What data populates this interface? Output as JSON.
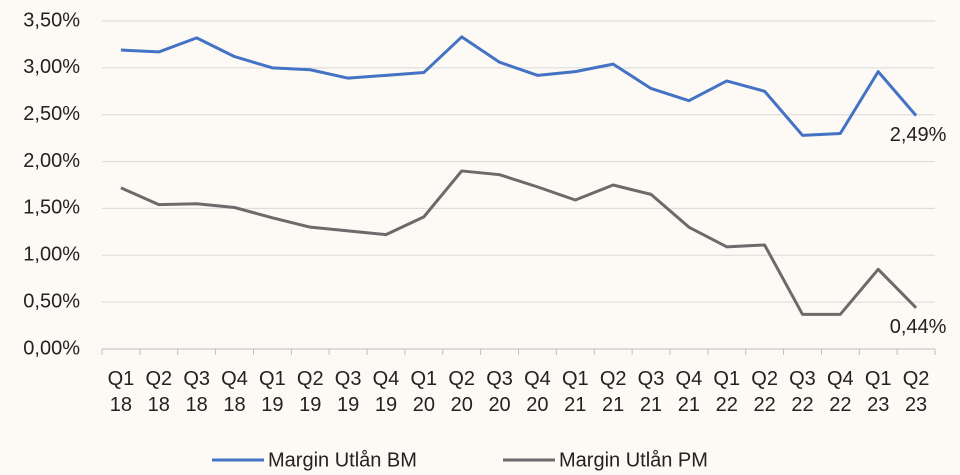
{
  "chart_data": {
    "type": "line",
    "categories": [
      "Q1\n18",
      "Q2\n18",
      "Q3\n18",
      "Q4\n18",
      "Q1\n19",
      "Q2\n19",
      "Q3\n19",
      "Q4\n19",
      "Q1\n20",
      "Q2\n20",
      "Q3\n20",
      "Q4\n20",
      "Q1\n21",
      "Q2\n21",
      "Q3\n21",
      "Q4\n21",
      "Q1\n22",
      "Q2\n22",
      "Q3\n22",
      "Q4\n22",
      "Q1\n23",
      "Q2\n23"
    ],
    "series": [
      {
        "name": "Margin Utlån BM",
        "color": "#4472c4",
        "values": [
          3.19,
          3.17,
          3.32,
          3.12,
          3.0,
          2.98,
          2.89,
          2.92,
          2.95,
          3.33,
          3.06,
          2.92,
          2.96,
          3.04,
          2.78,
          2.65,
          2.86,
          2.75,
          2.28,
          2.3,
          2.96,
          2.49
        ],
        "value_labels": [
          null,
          null,
          null,
          null,
          null,
          null,
          null,
          null,
          null,
          null,
          null,
          null,
          null,
          null,
          null,
          null,
          null,
          null,
          null,
          null,
          null,
          "2,49%"
        ]
      },
      {
        "name": "Margin Utlån PM",
        "color": "#6b6b6b",
        "values": [
          1.72,
          1.54,
          1.55,
          1.51,
          1.4,
          1.3,
          1.26,
          1.22,
          1.41,
          1.9,
          1.86,
          1.73,
          1.59,
          1.75,
          1.65,
          1.3,
          1.09,
          1.11,
          0.37,
          0.37,
          0.85,
          0.44
        ],
        "value_labels": [
          null,
          null,
          null,
          null,
          null,
          null,
          null,
          null,
          null,
          null,
          null,
          null,
          null,
          null,
          null,
          null,
          null,
          null,
          null,
          null,
          null,
          "0,44%"
        ]
      }
    ],
    "ylim": [
      0,
      3.5
    ],
    "yticks": [
      {
        "value": 0,
        "label": "0,00%"
      },
      {
        "value": 0.5,
        "label": "0,50%"
      },
      {
        "value": 1,
        "label": "1,00%"
      },
      {
        "value": 1.5,
        "label": "1,50%"
      },
      {
        "value": 2,
        "label": "2,00%"
      },
      {
        "value": 2.5,
        "label": "2,50%"
      },
      {
        "value": 3,
        "label": "3,00%"
      },
      {
        "value": 3.5,
        "label": "3,50%"
      }
    ],
    "grid": true,
    "legend": "bottom"
  }
}
